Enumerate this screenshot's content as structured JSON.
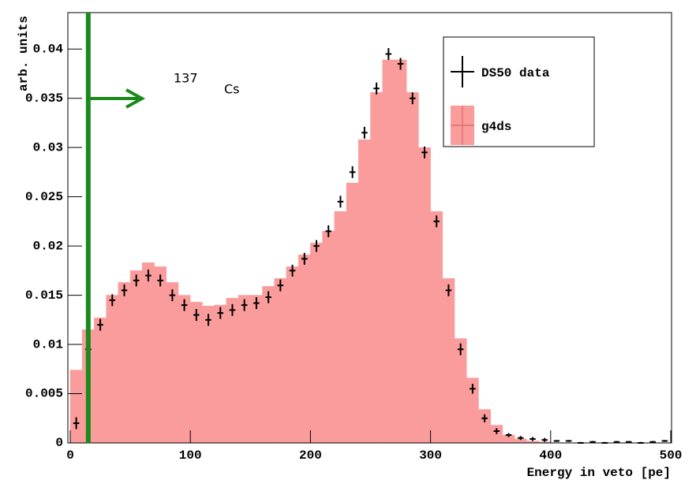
{
  "chart_data": {
    "type": "histogram",
    "ylabel": "arb. units",
    "xlabel": "Energy in veto [pe]",
    "bins": [
      0,
      10,
      20,
      30,
      40,
      50,
      60,
      70,
      80,
      90,
      100,
      110,
      120,
      130,
      140,
      150,
      160,
      170,
      180,
      190,
      200,
      210,
      220,
      230,
      240,
      250,
      260,
      270,
      280,
      290,
      300,
      310,
      320,
      330,
      340,
      350,
      360,
      370,
      380,
      390,
      400,
      410,
      420,
      430,
      440,
      450,
      460,
      470,
      480,
      490,
      500
    ],
    "series": [
      {
        "name": "g4ds",
        "color": "#fa9c9c",
        "style": "filled",
        "values": [
          0.0074,
          0.0115,
          0.0127,
          0.015,
          0.0163,
          0.0175,
          0.0183,
          0.0179,
          0.0163,
          0.015,
          0.0143,
          0.0139,
          0.014,
          0.0147,
          0.015,
          0.015,
          0.0159,
          0.0167,
          0.0179,
          0.0191,
          0.0203,
          0.0215,
          0.0235,
          0.0264,
          0.0308,
          0.0356,
          0.0389,
          0.0389,
          0.0356,
          0.03,
          0.0235,
          0.0167,
          0.0106,
          0.0066,
          0.0034,
          0.0018,
          0.0008,
          0.0004,
          0.0002,
          0.0001,
          0,
          0,
          0,
          0,
          0,
          0,
          0,
          0,
          0,
          0
        ]
      },
      {
        "name": "DS50 data",
        "color": "#000000",
        "style": "points",
        "values": [
          0.002,
          0.0095,
          0.012,
          0.0145,
          0.0155,
          0.0165,
          0.017,
          0.0165,
          0.015,
          0.014,
          0.013,
          0.0125,
          0.0132,
          0.0135,
          0.014,
          0.0142,
          0.0148,
          0.016,
          0.0175,
          0.0187,
          0.02,
          0.0215,
          0.0245,
          0.0275,
          0.0315,
          0.036,
          0.0395,
          0.0385,
          0.035,
          0.0295,
          0.0225,
          0.0155,
          0.0095,
          0.0055,
          0.0025,
          0.0012,
          0.0008,
          0.0005,
          0.0004,
          0.0003,
          0.0002,
          0.0002,
          0,
          0.0001,
          0,
          0.0001,
          0.0001,
          0,
          0.0001,
          0.0002
        ],
        "errors": [
          0.0006,
          0.0006,
          0.0006,
          0.0006,
          0.0006,
          0.0006,
          0.0006,
          0.0006,
          0.0006,
          0.0006,
          0.0006,
          0.0006,
          0.0006,
          0.0006,
          0.0006,
          0.0006,
          0.0006,
          0.0006,
          0.0006,
          0.0006,
          0.0006,
          0.0006,
          0.0006,
          0.0006,
          0.0006,
          0.0006,
          0.0006,
          0.0006,
          0.0006,
          0.0006,
          0.0006,
          0.0006,
          0.0006,
          0.0005,
          0.0004,
          0.0003,
          0.0002,
          0.0002,
          0.0002,
          0.0002,
          0.0001,
          0.0001,
          0.0001,
          0.0001,
          0.0001,
          0.0001,
          0.0001,
          0.0001,
          0.0001,
          0.0001
        ]
      }
    ],
    "xlim": [
      0,
      500
    ],
    "ylim": [
      0,
      0.0437
    ],
    "xticks": [
      0,
      100,
      200,
      300,
      400,
      500
    ],
    "yticks": [
      0,
      0.005,
      0.01,
      0.015,
      0.02,
      0.025,
      0.03,
      0.035,
      0.04
    ],
    "legend": "top-right",
    "annotation": {
      "x": 15,
      "color": "#1a8a1a",
      "superscript": "137",
      "text": "Cs"
    }
  }
}
